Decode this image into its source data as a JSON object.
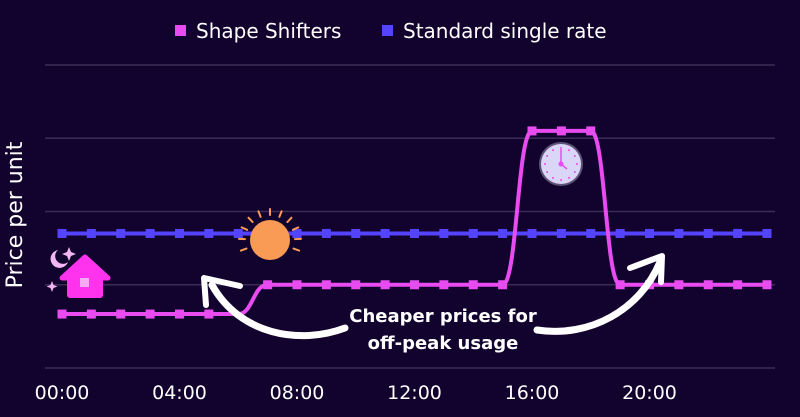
{
  "chart_data": {
    "type": "line",
    "title": "",
    "xlabel": "",
    "ylabel": "Price per unit",
    "x": [
      0,
      1,
      2,
      3,
      4,
      5,
      6,
      7,
      8,
      9,
      10,
      11,
      12,
      13,
      14,
      15,
      16,
      17,
      18,
      19,
      20,
      21,
      22,
      23,
      24
    ],
    "x_tick_labels": [
      "00:00",
      "04:00",
      "08:00",
      "12:00",
      "16:00",
      "20:00"
    ],
    "x_tick_hours": [
      0,
      4,
      8,
      12,
      16,
      20
    ],
    "ylim": [
      0,
      4
    ],
    "grid": true,
    "grid_values": [
      1,
      2,
      3,
      4
    ],
    "legend_position": "top",
    "series": [
      {
        "name": "Shape Shifters",
        "color": "#e84cf0",
        "values": [
          0.6,
          0.6,
          0.6,
          0.6,
          0.6,
          0.6,
          0.6,
          1.0,
          1.0,
          1.0,
          1.0,
          1.0,
          1.0,
          1.0,
          1.0,
          1.0,
          3.1,
          3.1,
          3.1,
          1.0,
          1.0,
          1.0,
          1.0,
          1.0,
          1.0
        ],
        "markers_hidden_at": [
          6
        ]
      },
      {
        "name": "Standard single rate",
        "color": "#5544ff",
        "values": [
          1.7,
          1.7,
          1.7,
          1.7,
          1.7,
          1.7,
          1.7,
          1.7,
          1.7,
          1.7,
          1.7,
          1.7,
          1.7,
          1.7,
          1.7,
          1.7,
          1.7,
          1.7,
          1.7,
          1.7,
          1.7,
          1.7,
          1.7,
          1.7,
          1.7
        ]
      }
    ],
    "annotations": {
      "text_line1": "Cheaper prices for",
      "text_line2": "off-peak usage",
      "icons": [
        "house-moon-icon",
        "sun-icon",
        "clock-icon",
        "curved-arrow-icon"
      ]
    }
  },
  "colors": {
    "background": "#12022e",
    "grid": "#3a2d55",
    "sun": "#f99a55",
    "clock_face": "#d9d6f7"
  }
}
